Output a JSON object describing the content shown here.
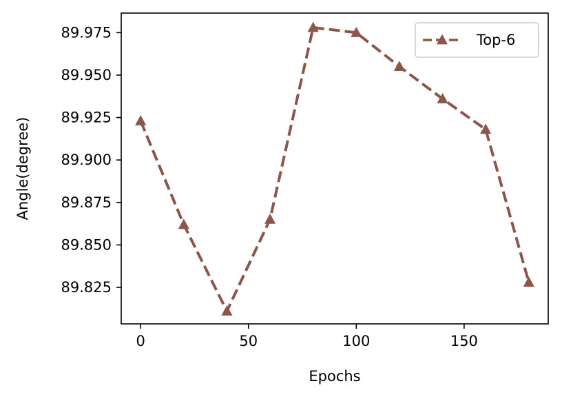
{
  "chart_data": {
    "type": "line",
    "title": "",
    "xlabel": "Epochs",
    "ylabel": "Angle(degree)",
    "xlim": [
      -9,
      189
    ],
    "ylim": [
      89.8035,
      89.9865
    ],
    "xticks": [
      0,
      50,
      100,
      150
    ],
    "xtick_labels": [
      "0",
      "50",
      "100",
      "150"
    ],
    "yticks": [
      89.825,
      89.85,
      89.875,
      89.9,
      89.925,
      89.95,
      89.975
    ],
    "ytick_labels": [
      "89.825",
      "89.850",
      "89.875",
      "89.900",
      "89.925",
      "89.950",
      "89.975"
    ],
    "grid": false,
    "legend_position": "top-right",
    "series": [
      {
        "name": "Top-6",
        "color": "#8c564b",
        "line_style": "dashed",
        "marker": "triangle-up",
        "x": [
          0,
          20,
          40,
          60,
          80,
          100,
          120,
          140,
          160,
          180
        ],
        "y": [
          89.923,
          89.862,
          89.811,
          89.865,
          89.978,
          89.975,
          89.955,
          89.936,
          89.918,
          89.828
        ]
      }
    ]
  }
}
